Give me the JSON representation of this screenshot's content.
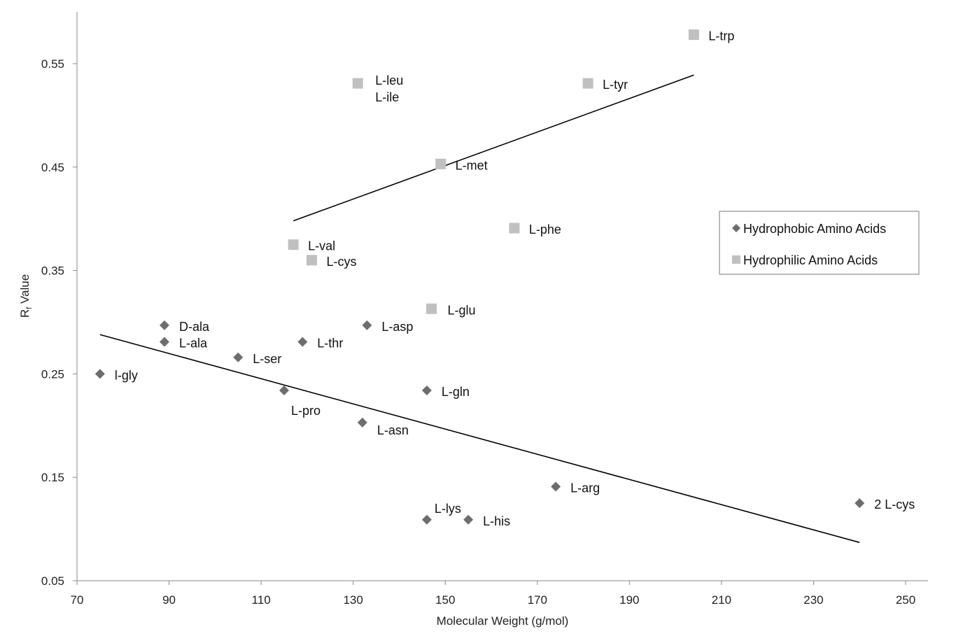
{
  "chart_data": {
    "type": "scatter",
    "title": "",
    "xlabel": "Molecular Weight (g/mol)",
    "ylabel_main": "R",
    "ylabel_sub": "f",
    "ylabel_rest": " Value",
    "xlim": [
      70,
      255
    ],
    "ylim": [
      0.05,
      0.6
    ],
    "xticks": [
      70,
      90,
      110,
      130,
      150,
      170,
      190,
      210,
      230,
      250
    ],
    "xtick_labels": [
      "70",
      "90",
      "110",
      "130",
      "150",
      "170",
      "190",
      "210",
      "230",
      "250"
    ],
    "yticks": [
      0.05,
      0.15,
      0.25,
      0.35,
      0.45,
      0.55
    ],
    "ytick_labels": [
      "0.05",
      "0.15",
      "0.25",
      "0.35",
      "0.45",
      "0.55"
    ],
    "grid": false,
    "legend_position": "right",
    "series": [
      {
        "name": "Hydrophobic Amino Acids",
        "marker": "diamond",
        "color": "#6d6d6d",
        "points": [
          {
            "x": 75,
            "y": 0.25,
            "label": "l-gly"
          },
          {
            "x": 89,
            "y": 0.297,
            "label": "D-ala"
          },
          {
            "x": 89,
            "y": 0.281,
            "label": "L-ala"
          },
          {
            "x": 105,
            "y": 0.266,
            "label": "L-ser"
          },
          {
            "x": 115,
            "y": 0.234,
            "label": "L-pro"
          },
          {
            "x": 119,
            "y": 0.281,
            "label": "L-thr"
          },
          {
            "x": 133,
            "y": 0.297,
            "label": "L-asp"
          },
          {
            "x": 132,
            "y": 0.203,
            "label": "L-asn"
          },
          {
            "x": 146,
            "y": 0.234,
            "label": "L-gln"
          },
          {
            "x": 146,
            "y": 0.109,
            "label": "L-lys"
          },
          {
            "x": 155,
            "y": 0.109,
            "label": "L-his"
          },
          {
            "x": 174,
            "y": 0.141,
            "label": "L-arg"
          },
          {
            "x": 240,
            "y": 0.125,
            "label": "2 L-cys"
          }
        ],
        "trendline": {
          "x1": 75,
          "y1": 0.288,
          "x2": 240,
          "y2": 0.087
        }
      },
      {
        "name": "Hydrophilic Amino Acids",
        "marker": "square",
        "color": "#c0c0c0",
        "points": [
          {
            "x": 117,
            "y": 0.375,
            "label": "L-val"
          },
          {
            "x": 121,
            "y": 0.36,
            "label": "L-cys"
          },
          {
            "x": 131,
            "y": 0.531,
            "label": "L-leu"
          },
          {
            "x": 131,
            "y": 0.531,
            "label": "L-ile"
          },
          {
            "x": 149,
            "y": 0.453,
            "label": "L-met"
          },
          {
            "x": 147,
            "y": 0.313,
            "label": "L-glu"
          },
          {
            "x": 165,
            "y": 0.391,
            "label": "L-phe"
          },
          {
            "x": 181,
            "y": 0.531,
            "label": "L-tyr"
          },
          {
            "x": 204,
            "y": 0.578,
            "label": "L-trp"
          }
        ],
        "trendline": {
          "x1": 117,
          "y1": 0.398,
          "x2": 204,
          "y2": 0.539
        }
      }
    ]
  }
}
